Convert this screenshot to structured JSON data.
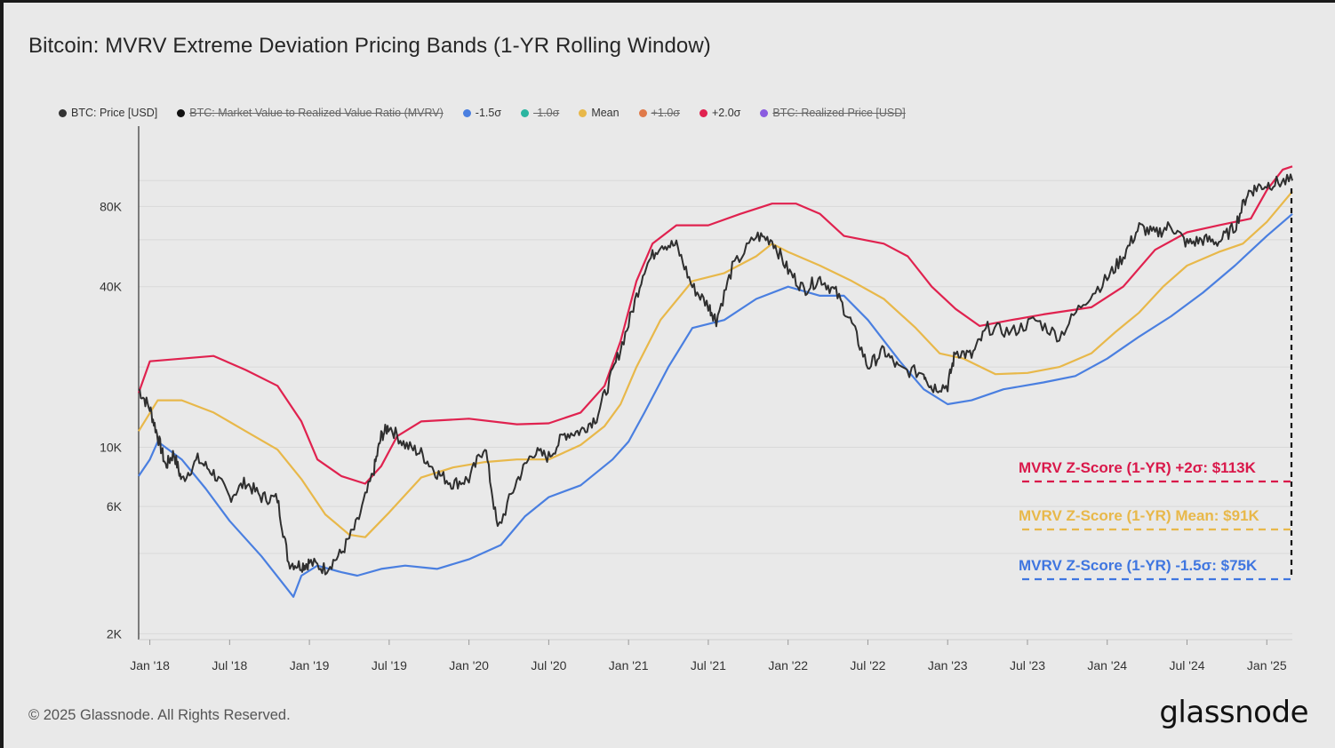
{
  "title": "Bitcoin: MVRV Extreme Deviation Pricing Bands (1-YR Rolling Window)",
  "footer": "© 2025 Glassnode. All Rights Reserved.",
  "brand": "glassnode",
  "legend": [
    {
      "label": "BTC: Price [USD]",
      "color": "#333333",
      "active": true,
      "icon": "dot-icon"
    },
    {
      "label": "BTC: Market Value to Realized Value Ratio (MVRV)",
      "color": "#111111",
      "active": false,
      "icon": "dot-icon"
    },
    {
      "label": "-1.5σ",
      "color": "#4a7fe0",
      "active": true,
      "icon": "dot-icon"
    },
    {
      "label": "-1.0σ",
      "color": "#2bb5a0",
      "active": false,
      "icon": "dot-icon"
    },
    {
      "label": "Mean",
      "color": "#e8b84a",
      "active": true,
      "icon": "dot-icon"
    },
    {
      "label": "+1.0σ",
      "color": "#e07a4a",
      "active": false,
      "icon": "dot-icon"
    },
    {
      "label": "+2.0σ",
      "color": "#e0224f",
      "active": true,
      "icon": "dot-icon"
    },
    {
      "label": "BTC: Realized Price [USD]",
      "color": "#8a5ce0",
      "active": false,
      "icon": "dot-icon"
    }
  ],
  "chart_data": {
    "type": "line",
    "title": "Bitcoin: MVRV Extreme Deviation Pricing Bands (1-YR Rolling Window)",
    "yscale": "log",
    "ylim": [
      1900,
      160000
    ],
    "xlim": [
      2017.93,
      2025.16
    ],
    "y_ticks": [
      {
        "v": 2000,
        "label": "2K"
      },
      {
        "v": 6000,
        "label": "6K"
      },
      {
        "v": 10000,
        "label": "10K"
      },
      {
        "v": 40000,
        "label": "40K"
      },
      {
        "v": 80000,
        "label": "80K"
      }
    ],
    "y_grid": [
      4000,
      20000,
      60000,
      100000
    ],
    "x_ticks": [
      {
        "v": 2018.0,
        "label": "Jan '18"
      },
      {
        "v": 2018.5,
        "label": "Jul '18"
      },
      {
        "v": 2019.0,
        "label": "Jan '19"
      },
      {
        "v": 2019.5,
        "label": "Jul '19"
      },
      {
        "v": 2020.0,
        "label": "Jan '20"
      },
      {
        "v": 2020.5,
        "label": "Jul '20"
      },
      {
        "v": 2021.0,
        "label": "Jan '21"
      },
      {
        "v": 2021.5,
        "label": "Jul '21"
      },
      {
        "v": 2022.0,
        "label": "Jan '22"
      },
      {
        "v": 2022.5,
        "label": "Jul '22"
      },
      {
        "v": 2023.0,
        "label": "Jan '23"
      },
      {
        "v": 2023.5,
        "label": "Jul '23"
      },
      {
        "v": 2024.0,
        "label": "Jan '24"
      },
      {
        "v": 2024.5,
        "label": "Jul '24"
      },
      {
        "v": 2025.0,
        "label": "Jan '25"
      }
    ],
    "series": [
      {
        "name": "+2.0σ",
        "color": "#e0224f",
        "points": [
          [
            2017.93,
            16000
          ],
          [
            2018.0,
            21000
          ],
          [
            2018.2,
            21500
          ],
          [
            2018.4,
            22000
          ],
          [
            2018.6,
            19500
          ],
          [
            2018.8,
            17000
          ],
          [
            2018.95,
            12500
          ],
          [
            2019.05,
            9000
          ],
          [
            2019.2,
            7800
          ],
          [
            2019.35,
            7300
          ],
          [
            2019.45,
            8500
          ],
          [
            2019.55,
            11000
          ],
          [
            2019.7,
            12500
          ],
          [
            2020.0,
            12800
          ],
          [
            2020.3,
            12200
          ],
          [
            2020.5,
            12300
          ],
          [
            2020.7,
            13500
          ],
          [
            2020.85,
            17000
          ],
          [
            2020.95,
            25000
          ],
          [
            2021.05,
            42000
          ],
          [
            2021.15,
            58000
          ],
          [
            2021.3,
            68000
          ],
          [
            2021.5,
            68000
          ],
          [
            2021.7,
            75000
          ],
          [
            2021.9,
            82000
          ],
          [
            2022.05,
            82000
          ],
          [
            2022.2,
            75000
          ],
          [
            2022.35,
            62000
          ],
          [
            2022.6,
            58000
          ],
          [
            2022.75,
            52000
          ],
          [
            2022.9,
            40000
          ],
          [
            2023.05,
            33000
          ],
          [
            2023.2,
            28500
          ],
          [
            2023.4,
            30000
          ],
          [
            2023.6,
            31500
          ],
          [
            2023.9,
            33500
          ],
          [
            2024.1,
            40000
          ],
          [
            2024.3,
            55000
          ],
          [
            2024.5,
            64000
          ],
          [
            2024.7,
            68000
          ],
          [
            2024.9,
            72000
          ],
          [
            2025.0,
            92000
          ],
          [
            2025.1,
            110000
          ],
          [
            2025.16,
            113000
          ]
        ]
      },
      {
        "name": "Mean",
        "color": "#e8b84a",
        "points": [
          [
            2017.93,
            11500
          ],
          [
            2018.05,
            15000
          ],
          [
            2018.2,
            15000
          ],
          [
            2018.4,
            13500
          ],
          [
            2018.6,
            11500
          ],
          [
            2018.8,
            9800
          ],
          [
            2018.95,
            7600
          ],
          [
            2019.1,
            5600
          ],
          [
            2019.25,
            4700
          ],
          [
            2019.35,
            4600
          ],
          [
            2019.5,
            5700
          ],
          [
            2019.7,
            7700
          ],
          [
            2019.9,
            8400
          ],
          [
            2020.1,
            8800
          ],
          [
            2020.3,
            9000
          ],
          [
            2020.5,
            9000
          ],
          [
            2020.7,
            10200
          ],
          [
            2020.85,
            12000
          ],
          [
            2020.95,
            14500
          ],
          [
            2021.05,
            20000
          ],
          [
            2021.2,
            30000
          ],
          [
            2021.4,
            42000
          ],
          [
            2021.6,
            45000
          ],
          [
            2021.8,
            52000
          ],
          [
            2021.9,
            58000
          ],
          [
            2022.0,
            54000
          ],
          [
            2022.2,
            48000
          ],
          [
            2022.4,
            42000
          ],
          [
            2022.6,
            36000
          ],
          [
            2022.8,
            28000
          ],
          [
            2022.95,
            22500
          ],
          [
            2023.1,
            21500
          ],
          [
            2023.3,
            18800
          ],
          [
            2023.5,
            19000
          ],
          [
            2023.7,
            20000
          ],
          [
            2023.9,
            22500
          ],
          [
            2024.05,
            27000
          ],
          [
            2024.2,
            32000
          ],
          [
            2024.35,
            40000
          ],
          [
            2024.5,
            48000
          ],
          [
            2024.7,
            54000
          ],
          [
            2024.85,
            58000
          ],
          [
            2025.0,
            70000
          ],
          [
            2025.16,
            91000
          ]
        ]
      },
      {
        "name": "-1.5σ",
        "color": "#4a7fe0",
        "points": [
          [
            2017.93,
            7800
          ],
          [
            2018.0,
            9000
          ],
          [
            2018.05,
            10500
          ],
          [
            2018.2,
            9000
          ],
          [
            2018.35,
            7000
          ],
          [
            2018.5,
            5300
          ],
          [
            2018.7,
            3900
          ],
          [
            2018.85,
            3000
          ],
          [
            2018.9,
            2750
          ],
          [
            2018.95,
            3300
          ],
          [
            2019.05,
            3600
          ],
          [
            2019.2,
            3400
          ],
          [
            2019.3,
            3300
          ],
          [
            2019.45,
            3500
          ],
          [
            2019.6,
            3600
          ],
          [
            2019.8,
            3500
          ],
          [
            2020.0,
            3800
          ],
          [
            2020.2,
            4300
          ],
          [
            2020.35,
            5500
          ],
          [
            2020.5,
            6500
          ],
          [
            2020.7,
            7200
          ],
          [
            2020.9,
            9000
          ],
          [
            2021.0,
            10500
          ],
          [
            2021.1,
            13500
          ],
          [
            2021.25,
            20000
          ],
          [
            2021.4,
            28000
          ],
          [
            2021.6,
            30000
          ],
          [
            2021.8,
            36000
          ],
          [
            2022.0,
            40000
          ],
          [
            2022.2,
            37000
          ],
          [
            2022.35,
            37000
          ],
          [
            2022.5,
            30000
          ],
          [
            2022.7,
            21000
          ],
          [
            2022.85,
            16500
          ],
          [
            2023.0,
            14500
          ],
          [
            2023.15,
            15000
          ],
          [
            2023.35,
            16500
          ],
          [
            2023.6,
            17500
          ],
          [
            2023.8,
            18500
          ],
          [
            2024.0,
            21500
          ],
          [
            2024.2,
            26000
          ],
          [
            2024.4,
            31000
          ],
          [
            2024.6,
            38000
          ],
          [
            2024.8,
            48000
          ],
          [
            2025.0,
            62000
          ],
          [
            2025.16,
            75000
          ]
        ]
      },
      {
        "name": "BTC: Price [USD]",
        "color": "#2f2f2f",
        "points": [
          [
            2017.93,
            16500
          ],
          [
            2018.0,
            14000
          ],
          [
            2018.05,
            11000
          ],
          [
            2018.1,
            8500
          ],
          [
            2018.15,
            9500
          ],
          [
            2018.2,
            7500
          ],
          [
            2018.3,
            9000
          ],
          [
            2018.4,
            8000
          ],
          [
            2018.5,
            6500
          ],
          [
            2018.6,
            7400
          ],
          [
            2018.7,
            6500
          ],
          [
            2018.8,
            6400
          ],
          [
            2018.87,
            3700
          ],
          [
            2018.95,
            3600
          ],
          [
            2019.0,
            3700
          ],
          [
            2019.1,
            3500
          ],
          [
            2019.2,
            4000
          ],
          [
            2019.3,
            5200
          ],
          [
            2019.4,
            8000
          ],
          [
            2019.45,
            11000
          ],
          [
            2019.5,
            12000
          ],
          [
            2019.6,
            10200
          ],
          [
            2019.7,
            9500
          ],
          [
            2019.8,
            8000
          ],
          [
            2019.9,
            7300
          ],
          [
            2020.0,
            7600
          ],
          [
            2020.1,
            10200
          ],
          [
            2020.18,
            4900
          ],
          [
            2020.3,
            7500
          ],
          [
            2020.4,
            9600
          ],
          [
            2020.5,
            9200
          ],
          [
            2020.6,
            11200
          ],
          [
            2020.7,
            11500
          ],
          [
            2020.8,
            13000
          ],
          [
            2020.9,
            19000
          ],
          [
            2021.0,
            29000
          ],
          [
            2021.1,
            47000
          ],
          [
            2021.2,
            58000
          ],
          [
            2021.3,
            57000
          ],
          [
            2021.4,
            40000
          ],
          [
            2021.5,
            34000
          ],
          [
            2021.55,
            30000
          ],
          [
            2021.65,
            47000
          ],
          [
            2021.8,
            62000
          ],
          [
            2021.9,
            60000
          ],
          [
            2022.0,
            46000
          ],
          [
            2022.1,
            39000
          ],
          [
            2022.2,
            43000
          ],
          [
            2022.3,
            38000
          ],
          [
            2022.4,
            29000
          ],
          [
            2022.5,
            20000
          ],
          [
            2022.6,
            23000
          ],
          [
            2022.7,
            19500
          ],
          [
            2022.85,
            19000
          ],
          [
            2022.9,
            16800
          ],
          [
            2023.0,
            17000
          ],
          [
            2023.05,
            23000
          ],
          [
            2023.15,
            22000
          ],
          [
            2023.25,
            28000
          ],
          [
            2023.4,
            27000
          ],
          [
            2023.55,
            30000
          ],
          [
            2023.7,
            26000
          ],
          [
            2023.85,
            35000
          ],
          [
            2024.0,
            43000
          ],
          [
            2024.1,
            52000
          ],
          [
            2024.2,
            67000
          ],
          [
            2024.3,
            63000
          ],
          [
            2024.4,
            68000
          ],
          [
            2024.5,
            58000
          ],
          [
            2024.6,
            60000
          ],
          [
            2024.7,
            59000
          ],
          [
            2024.8,
            67000
          ],
          [
            2024.88,
            90000
          ],
          [
            2024.95,
            95000
          ],
          [
            2025.05,
            98000
          ],
          [
            2025.16,
            100000
          ]
        ]
      }
    ],
    "annotations": [
      {
        "label": "MVRV Z-Score (1-YR) +2σ: $113K",
        "value": 113000,
        "color": "#d9184a"
      },
      {
        "label": "MVRV Z-Score (1-YR) Mean: $91K",
        "value": 91000,
        "color": "#e8b84a"
      },
      {
        "label": "MVRV Z-Score (1-YR) -1.5σ: $75K",
        "value": 75000,
        "color": "#3f76e0"
      }
    ]
  }
}
